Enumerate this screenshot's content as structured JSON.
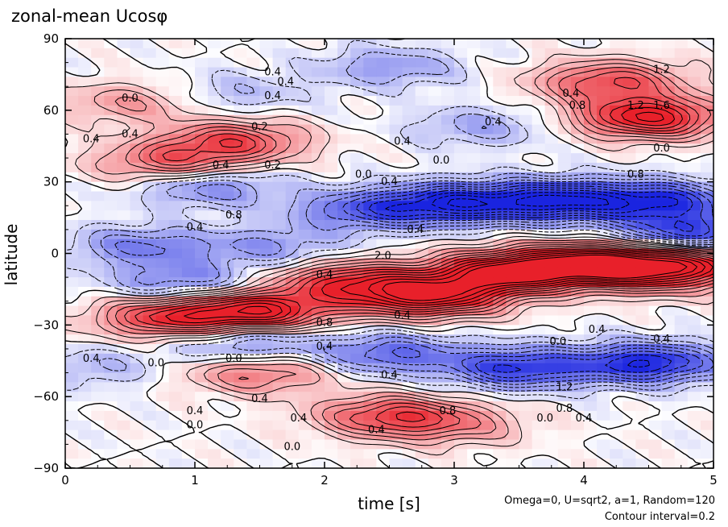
{
  "chart_data": {
    "type": "heatmap",
    "title": "zonal-mean Ucosφ",
    "xlabel": "time [s]",
    "ylabel": "latitude",
    "xlim": [
      0,
      5
    ],
    "ylim": [
      -90,
      90
    ],
    "x_ticks": [
      0,
      1,
      2,
      3,
      4,
      5
    ],
    "x_tick_labels": [
      "0",
      "1",
      "2",
      "3",
      "4",
      "5"
    ],
    "y_ticks": [
      -90,
      -60,
      -30,
      0,
      30,
      60,
      90
    ],
    "y_tick_labels": [
      "−90",
      "−60",
      "−30",
      "0",
      "30",
      "60",
      "90"
    ],
    "contour_interval": 0.2,
    "colors": {
      "positive": "#e8202a",
      "negative": "#1a24e0",
      "zero": "#ffffff"
    },
    "features": [
      {
        "t": 3.4,
        "lat": -8,
        "value": 2.2
      },
      {
        "t": 2.8,
        "lat": -18,
        "value": 2.0
      },
      {
        "t": 2.2,
        "lat": -12,
        "value": 1.4
      },
      {
        "t": 1.5,
        "lat": -24,
        "value": 1.8
      },
      {
        "t": 0.8,
        "lat": -27,
        "value": 1.4
      },
      {
        "t": 4.1,
        "lat": -4,
        "value": 2.0
      },
      {
        "t": 4.6,
        "lat": -8,
        "value": 1.2
      },
      {
        "t": 3.8,
        "lat": 22,
        "value": -1.8
      },
      {
        "t": 3.0,
        "lat": 21,
        "value": -1.6
      },
      {
        "t": 4.6,
        "lat": 22,
        "value": -1.4
      },
      {
        "t": 2.3,
        "lat": 18,
        "value": -1.0
      },
      {
        "t": 1.1,
        "lat": 28,
        "value": -0.8
      },
      {
        "t": 0.6,
        "lat": 3,
        "value": -0.8
      },
      {
        "t": 1.6,
        "lat": 3,
        "value": -0.6
      },
      {
        "t": 0.9,
        "lat": -12,
        "value": -0.8
      },
      {
        "t": 3.5,
        "lat": -48,
        "value": -1.4
      },
      {
        "t": 4.5,
        "lat": -46,
        "value": -1.6
      },
      {
        "t": 2.5,
        "lat": -42,
        "value": -1.0
      },
      {
        "t": 1.4,
        "lat": -38,
        "value": -0.8
      },
      {
        "t": 4.5,
        "lat": 57,
        "value": 1.8
      },
      {
        "t": 4.2,
        "lat": 72,
        "value": 1.2
      },
      {
        "t": 1.3,
        "lat": 47,
        "value": 1.2
      },
      {
        "t": 0.8,
        "lat": 38,
        "value": 1.0
      },
      {
        "t": 0.5,
        "lat": 63,
        "value": 0.6
      },
      {
        "t": 2.5,
        "lat": -68,
        "value": 1.2
      },
      {
        "t": 1.5,
        "lat": -50,
        "value": 0.9
      },
      {
        "t": 3.0,
        "lat": -72,
        "value": 0.6
      },
      {
        "t": 2.5,
        "lat": 78,
        "value": -0.6
      },
      {
        "t": 3.2,
        "lat": 53,
        "value": -0.5
      },
      {
        "t": 1.3,
        "lat": 67,
        "value": -0.4
      },
      {
        "t": 0.2,
        "lat": -48,
        "value": -0.4
      },
      {
        "t": 4.8,
        "lat": 8,
        "value": -1.4
      },
      {
        "t": 4.9,
        "lat": -3,
        "value": 1.0
      }
    ],
    "contour_labels": [
      {
        "t": 0.5,
        "lat": 64,
        "text": "0.0"
      },
      {
        "t": 0.5,
        "lat": 49,
        "text": "0.4"
      },
      {
        "t": 0.2,
        "lat": 47,
        "text": "0.4"
      },
      {
        "t": 1.2,
        "lat": 36,
        "text": "0.4"
      },
      {
        "t": 1.6,
        "lat": 36,
        "text": "0.2"
      },
      {
        "t": 1.5,
        "lat": 52,
        "text": "0.2"
      },
      {
        "t": 1.6,
        "lat": 75,
        "text": "0.4"
      },
      {
        "t": 1.7,
        "lat": 71,
        "text": "0.4"
      },
      {
        "t": 1.6,
        "lat": 65,
        "text": "0.4"
      },
      {
        "t": 2.6,
        "lat": 46,
        "text": "0.4"
      },
      {
        "t": 2.3,
        "lat": 32,
        "text": "0.0"
      },
      {
        "t": 2.5,
        "lat": 29,
        "text": "0.4"
      },
      {
        "t": 2.9,
        "lat": 38,
        "text": "0.0"
      },
      {
        "t": 3.3,
        "lat": 54,
        "text": "0.4"
      },
      {
        "t": 3.9,
        "lat": 66,
        "text": "0.4"
      },
      {
        "t": 3.95,
        "lat": 61,
        "text": "0.8"
      },
      {
        "t": 4.4,
        "lat": 61,
        "text": "1.2"
      },
      {
        "t": 4.6,
        "lat": 61,
        "text": "1.6"
      },
      {
        "t": 4.6,
        "lat": 76,
        "text": "1.2"
      },
      {
        "t": 4.6,
        "lat": 43,
        "text": "0.0"
      },
      {
        "t": 4.4,
        "lat": 32,
        "text": "0.8"
      },
      {
        "t": 2.7,
        "lat": 9,
        "text": "0.4"
      },
      {
        "t": 2.45,
        "lat": -2,
        "text": "2.0"
      },
      {
        "t": 2.0,
        "lat": -10,
        "text": "0.4"
      },
      {
        "t": 1.3,
        "lat": 15,
        "text": "0.8"
      },
      {
        "t": 1.0,
        "lat": 10,
        "text": "0.4"
      },
      {
        "t": 2.6,
        "lat": -27,
        "text": "0.4"
      },
      {
        "t": 2.0,
        "lat": -30,
        "text": "0.8"
      },
      {
        "t": 2.0,
        "lat": -40,
        "text": "0.4"
      },
      {
        "t": 1.3,
        "lat": -45,
        "text": "0.0"
      },
      {
        "t": 0.7,
        "lat": -47,
        "text": "0.0"
      },
      {
        "t": 0.2,
        "lat": -45,
        "text": "0.4"
      },
      {
        "t": 2.5,
        "lat": -52,
        "text": "0.4"
      },
      {
        "t": 2.4,
        "lat": -75,
        "text": "0.4"
      },
      {
        "t": 1.5,
        "lat": -62,
        "text": "0.4"
      },
      {
        "t": 1.0,
        "lat": -67,
        "text": "0.4"
      },
      {
        "t": 1.0,
        "lat": -73,
        "text": "0.0"
      },
      {
        "t": 1.8,
        "lat": -70,
        "text": "0.4"
      },
      {
        "t": 1.75,
        "lat": -82,
        "text": "0.0"
      },
      {
        "t": 2.95,
        "lat": -67,
        "text": "0.8"
      },
      {
        "t": 3.85,
        "lat": -57,
        "text": "1.2"
      },
      {
        "t": 3.85,
        "lat": -66,
        "text": "0.8"
      },
      {
        "t": 3.7,
        "lat": -70,
        "text": "0.0"
      },
      {
        "t": 4.0,
        "lat": -70,
        "text": "0.4"
      },
      {
        "t": 4.1,
        "lat": -33,
        "text": "0.4"
      },
      {
        "t": 4.6,
        "lat": -37,
        "text": "0.4"
      },
      {
        "t": 3.8,
        "lat": -38,
        "text": "0.0"
      }
    ]
  },
  "annotation": {
    "params": "Omega=0, U=sqrt2, a=1, Random=120",
    "interval": "Contour interval=0.2"
  }
}
